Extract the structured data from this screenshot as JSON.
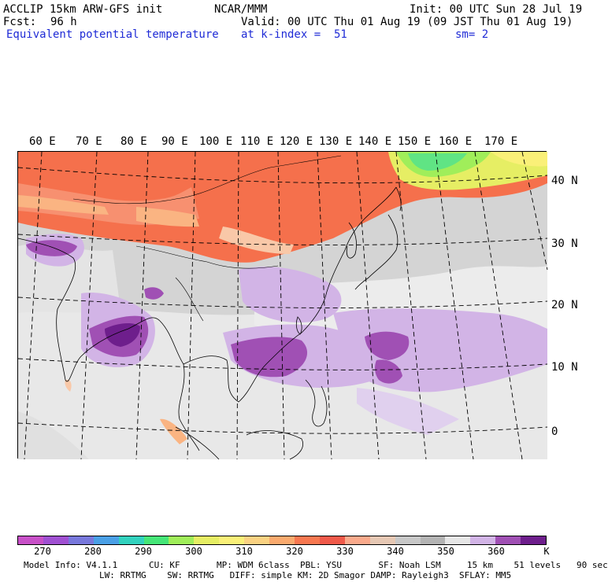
{
  "header": {
    "model_line": "ACCLIP 15km ARW-GFS init",
    "org": "NCAR/MMM",
    "init_line": "Init: 00 UTC Sun 28 Jul 19",
    "fcst_label": "Fcst:",
    "fcst_value": "96 h",
    "valid_line": "Valid: 00 UTC Thu 01 Aug 19 (09 JST Thu 01 Aug 19)",
    "field_name": "Equivalent potential temperature",
    "level_line": "at k-index =  51",
    "smoothing": "sm= 2"
  },
  "map": {
    "lon_labels": [
      "60 E",
      "70 E",
      "80 E",
      "90 E",
      "100 E",
      "110 E",
      "120 E",
      "130 E",
      "140 E",
      "150 E",
      "160 E",
      "170 E"
    ],
    "lat_labels": [
      "40 N",
      "30 N",
      "20 N",
      "10 N",
      "0"
    ]
  },
  "colorbar": {
    "colors": [
      "#c850c8",
      "#a050d2",
      "#7878dc",
      "#4aa0e6",
      "#32d2be",
      "#46e678",
      "#a0ee5a",
      "#e6ee64",
      "#faf078",
      "#fad282",
      "#faaa6e",
      "#f87850",
      "#f05a4a",
      "#faaa8c",
      "#e6c8b4",
      "#c8c8c8",
      "#b4b4b4",
      "#e6e6e6",
      "#d2b4e6",
      "#a050b4",
      "#6e1e8c"
    ],
    "labels": [
      "270",
      "280",
      "290",
      "300",
      "310",
      "320",
      "330",
      "340",
      "350",
      "360"
    ],
    "unit": "K"
  },
  "footer": {
    "line1": "Model Info: V4.1.1      CU: KF       MP: WDM 6class  PBL: YSU       SF: Noah LSM     15 km    51 levels   90 sec",
    "line2": "LW: RRTMG    SW: RRTMG   DIFF: simple KM: 2D Smagor DAMP: Rayleigh3  SFLAY: MM5"
  }
}
